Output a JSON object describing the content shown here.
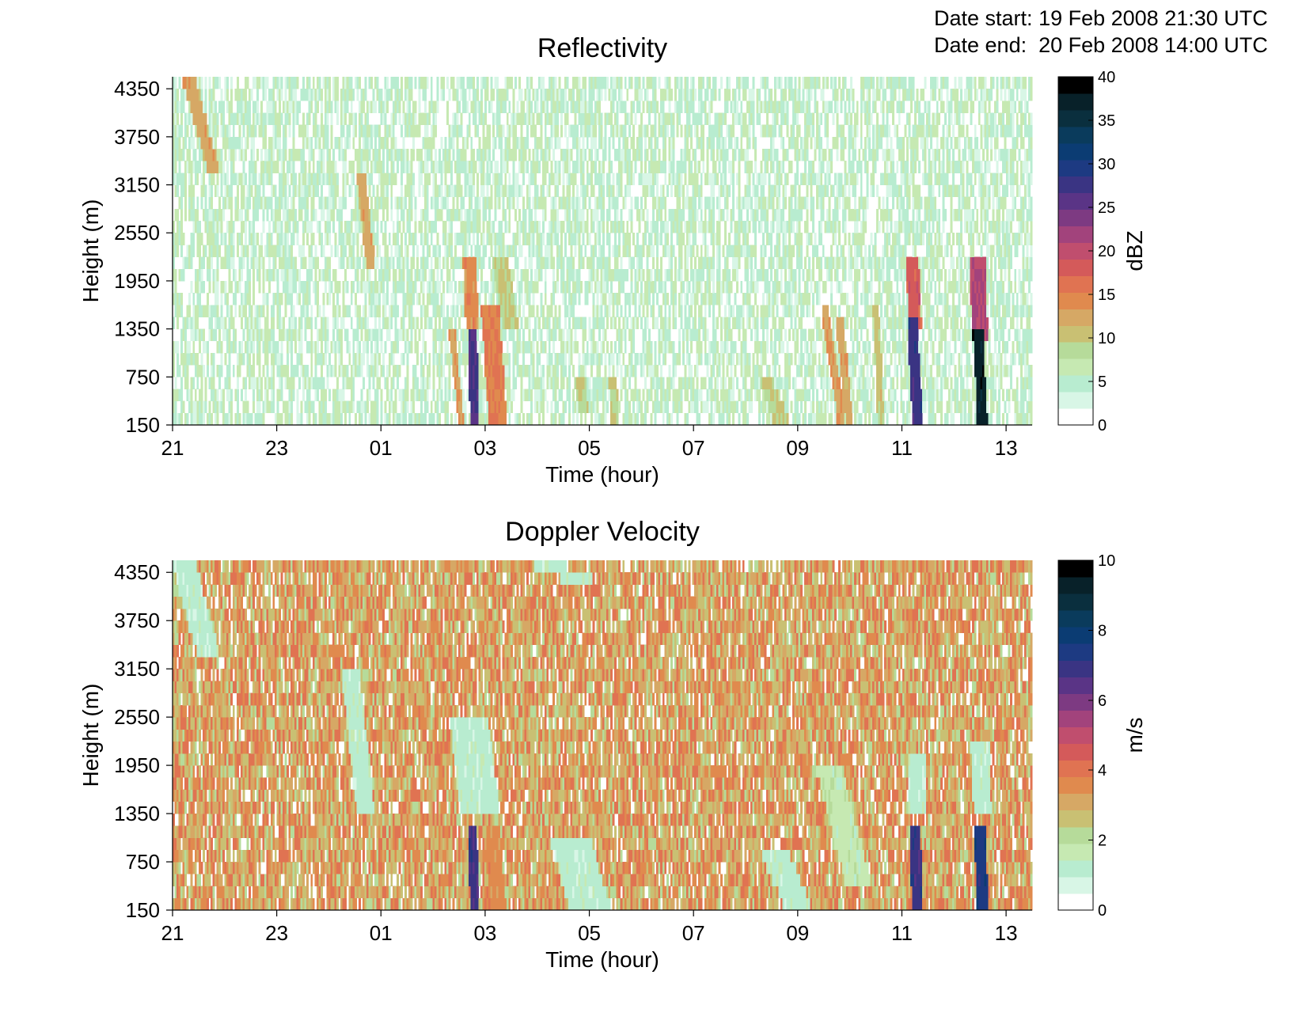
{
  "header": {
    "date_start_label": "Date start:",
    "date_start_value": "19 Feb 2008 21:30 UTC",
    "date_end_label": "Date end:",
    "date_end_value": "20 Feb 2008 14:00 UTC"
  },
  "palette": [
    "#ffffff",
    "#d8f6e6",
    "#b8ecd0",
    "#c6e9b2",
    "#b6db9a",
    "#c9c073",
    "#d6a865",
    "#e08a4e",
    "#e07352",
    "#d45a5a",
    "#c04e6e",
    "#a2437c",
    "#7d3a82",
    "#5a3486",
    "#3a3483",
    "#1d3a82",
    "#0b3c73",
    "#0a3b5c",
    "#0a2f3e",
    "#082129",
    "#000000"
  ],
  "chart_data": [
    {
      "type": "heatmap",
      "title": "Reflectivity",
      "xlabel": "Time (hour)",
      "ylabel": "Height (m)",
      "x_ticks": [
        "21",
        "23",
        "01",
        "03",
        "05",
        "07",
        "09",
        "11",
        "13"
      ],
      "x_tick_hours": [
        21,
        23,
        25,
        27,
        29,
        31,
        33,
        35,
        37
      ],
      "xlim": [
        21,
        37.5
      ],
      "y_ticks": [
        "150",
        "750",
        "1350",
        "1950",
        "2550",
        "3150",
        "3750",
        "4350"
      ],
      "y_tick_values": [
        150,
        750,
        1350,
        1950,
        2550,
        3150,
        3750,
        4350
      ],
      "ylim": [
        150,
        4500
      ],
      "colorbar": {
        "label": "dBZ",
        "min": 0,
        "max": 40,
        "ticks": [
          "0",
          "5",
          "10",
          "15",
          "20",
          "25",
          "30",
          "35",
          "40"
        ]
      },
      "background_value": 4,
      "features": [
        {
          "t0": 21.3,
          "t1": 21.8,
          "h0": 3300,
          "h1": 4500,
          "value": 12,
          "width": 0.25
        },
        {
          "t0": 24.6,
          "t1": 24.8,
          "h0": 2150,
          "h1": 3350,
          "value": 12,
          "width": 0.18
        },
        {
          "t0": 26.35,
          "t1": 26.55,
          "h0": 150,
          "h1": 1400,
          "value": 13,
          "width": 0.12
        },
        {
          "t0": 26.75,
          "t1": 26.8,
          "h0": 150,
          "h1": 1400,
          "value": 27,
          "width": 0.18
        },
        {
          "t0": 26.7,
          "t1": 26.75,
          "h0": 1400,
          "h1": 2300,
          "value": 14,
          "width": 0.25
        },
        {
          "t0": 27.1,
          "t1": 27.25,
          "h0": 150,
          "h1": 1600,
          "value": 15,
          "width": 0.35
        },
        {
          "t0": 27.3,
          "t1": 27.5,
          "h0": 1400,
          "h1": 2200,
          "value": 9,
          "width": 0.3
        },
        {
          "t0": 28.8,
          "t1": 28.9,
          "h0": 300,
          "h1": 800,
          "value": 9,
          "width": 0.2
        },
        {
          "t0": 29.45,
          "t1": 29.5,
          "h0": 150,
          "h1": 700,
          "value": 9,
          "width": 0.15
        },
        {
          "t0": 32.4,
          "t1": 32.7,
          "h0": 150,
          "h1": 700,
          "value": 9,
          "width": 0.3
        },
        {
          "t0": 33.5,
          "t1": 33.85,
          "h0": 150,
          "h1": 1700,
          "value": 13,
          "width": 0.15
        },
        {
          "t0": 33.8,
          "t1": 34.0,
          "h0": 150,
          "h1": 1500,
          "value": 12,
          "width": 0.15
        },
        {
          "t0": 34.5,
          "t1": 34.6,
          "h0": 150,
          "h1": 1600,
          "value": 10,
          "width": 0.12
        },
        {
          "t0": 35.2,
          "t1": 35.3,
          "h0": 150,
          "h1": 1500,
          "value": 28,
          "width": 0.2
        },
        {
          "t0": 35.2,
          "t1": 35.25,
          "h0": 1400,
          "h1": 2300,
          "value": 18,
          "width": 0.25
        },
        {
          "t0": 36.45,
          "t1": 36.55,
          "h0": 150,
          "h1": 1400,
          "value": 38,
          "width": 0.2
        },
        {
          "t0": 36.45,
          "t1": 36.5,
          "h0": 1200,
          "h1": 2300,
          "value": 21,
          "width": 0.3
        }
      ]
    },
    {
      "type": "heatmap",
      "title": "Doppler Velocity",
      "xlabel": "Time (hour)",
      "ylabel": "Height (m)",
      "x_ticks": [
        "21",
        "23",
        "01",
        "03",
        "05",
        "07",
        "09",
        "11",
        "13"
      ],
      "x_tick_hours": [
        21,
        23,
        25,
        27,
        29,
        31,
        33,
        35,
        37
      ],
      "xlim": [
        21,
        37.5
      ],
      "y_ticks": [
        "150",
        "750",
        "1350",
        "1950",
        "2550",
        "3150",
        "3750",
        "4350"
      ],
      "y_tick_values": [
        150,
        750,
        1350,
        1950,
        2550,
        3150,
        3750,
        4350
      ],
      "ylim": [
        150,
        4500
      ],
      "colorbar": {
        "label": "m/s",
        "min": 0,
        "max": 10,
        "ticks": [
          "0",
          "2",
          "4",
          "6",
          "8",
          "10"
        ]
      },
      "background_value": 3,
      "features": [
        {
          "t0": 21.2,
          "t1": 21.7,
          "h0": 3300,
          "h1": 4500,
          "value": 1,
          "width": 0.45
        },
        {
          "t0": 24.4,
          "t1": 24.7,
          "h0": 1400,
          "h1": 3200,
          "value": 1,
          "width": 0.35
        },
        {
          "t0": 26.7,
          "t1": 26.9,
          "h0": 1400,
          "h1": 2500,
          "value": 1,
          "width": 0.75
        },
        {
          "t0": 26.75,
          "t1": 26.8,
          "h0": 150,
          "h1": 1200,
          "value": 7,
          "width": 0.18
        },
        {
          "t0": 27.15,
          "t1": 27.25,
          "h0": 150,
          "h1": 1200,
          "value": 3.5,
          "width": 0.3
        },
        {
          "t0": 28.6,
          "t1": 29.0,
          "h0": 200,
          "h1": 1100,
          "value": 1,
          "width": 0.8
        },
        {
          "t0": 32.5,
          "t1": 33.0,
          "h0": 200,
          "h1": 950,
          "value": 1,
          "width": 0.55
        },
        {
          "t0": 33.6,
          "t1": 34.2,
          "h0": 400,
          "h1": 1900,
          "value": 1.5,
          "width": 0.5
        },
        {
          "t0": 35.3,
          "t1": 35.3,
          "h0": 1350,
          "h1": 2100,
          "value": 1,
          "width": 0.35
        },
        {
          "t0": 35.25,
          "t1": 35.3,
          "h0": 150,
          "h1": 1150,
          "value": 7,
          "width": 0.22
        },
        {
          "t0": 36.5,
          "t1": 36.55,
          "h0": 1350,
          "h1": 2200,
          "value": 1,
          "width": 0.35
        },
        {
          "t0": 36.5,
          "t1": 36.55,
          "h0": 150,
          "h1": 1150,
          "value": 7.5,
          "width": 0.22
        },
        {
          "t0": 28.0,
          "t1": 29.0,
          "h0": 4200,
          "h1": 4500,
          "value": 1,
          "width": 0.6
        }
      ]
    }
  ]
}
